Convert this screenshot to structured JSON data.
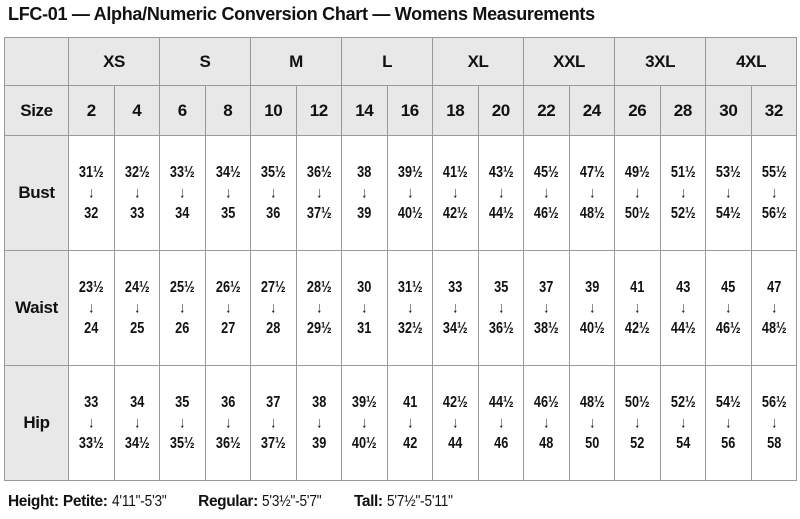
{
  "title": "LFC-01 — Alpha/Numeric Conversion Chart — Womens Measurements",
  "table": {
    "arrow": "↓",
    "alpha_sizes": [
      "XS",
      "S",
      "M",
      "L",
      "XL",
      "XXL",
      "3XL",
      "4XL"
    ],
    "size_row_label": "Size",
    "sizes": [
      "2",
      "4",
      "6",
      "8",
      "10",
      "12",
      "14",
      "16",
      "18",
      "20",
      "22",
      "24",
      "26",
      "28",
      "30",
      "32"
    ],
    "rows": [
      {
        "label": "Bust",
        "cells": [
          {
            "from": "31½",
            "to": "32"
          },
          {
            "from": "32½",
            "to": "33"
          },
          {
            "from": "33½",
            "to": "34"
          },
          {
            "from": "34½",
            "to": "35"
          },
          {
            "from": "35½",
            "to": "36"
          },
          {
            "from": "36½",
            "to": "37½"
          },
          {
            "from": "38",
            "to": "39"
          },
          {
            "from": "39½",
            "to": "40½"
          },
          {
            "from": "41½",
            "to": "42½"
          },
          {
            "from": "43½",
            "to": "44½"
          },
          {
            "from": "45½",
            "to": "46½"
          },
          {
            "from": "47½",
            "to": "48½"
          },
          {
            "from": "49½",
            "to": "50½"
          },
          {
            "from": "51½",
            "to": "52½"
          },
          {
            "from": "53½",
            "to": "54½"
          },
          {
            "from": "55½",
            "to": "56½"
          }
        ]
      },
      {
        "label": "Waist",
        "cells": [
          {
            "from": "23½",
            "to": "24"
          },
          {
            "from": "24½",
            "to": "25"
          },
          {
            "from": "25½",
            "to": "26"
          },
          {
            "from": "26½",
            "to": "27"
          },
          {
            "from": "27½",
            "to": "28"
          },
          {
            "from": "28½",
            "to": "29½"
          },
          {
            "from": "30",
            "to": "31"
          },
          {
            "from": "31½",
            "to": "32½"
          },
          {
            "from": "33",
            "to": "34½"
          },
          {
            "from": "35",
            "to": "36½"
          },
          {
            "from": "37",
            "to": "38½"
          },
          {
            "from": "39",
            "to": "40½"
          },
          {
            "from": "41",
            "to": "42½"
          },
          {
            "from": "43",
            "to": "44½"
          },
          {
            "from": "45",
            "to": "46½"
          },
          {
            "from": "47",
            "to": "48½"
          }
        ]
      },
      {
        "label": "Hip",
        "cells": [
          {
            "from": "33",
            "to": "33½"
          },
          {
            "from": "34",
            "to": "34½"
          },
          {
            "from": "35",
            "to": "35½"
          },
          {
            "from": "36",
            "to": "36½"
          },
          {
            "from": "37",
            "to": "37½"
          },
          {
            "from": "38",
            "to": "39"
          },
          {
            "from": "39½",
            "to": "40½"
          },
          {
            "from": "41",
            "to": "42"
          },
          {
            "from": "42½",
            "to": "44"
          },
          {
            "from": "44½",
            "to": "46"
          },
          {
            "from": "46½",
            "to": "48"
          },
          {
            "from": "48½",
            "to": "50"
          },
          {
            "from": "50½",
            "to": "52"
          },
          {
            "from": "52½",
            "to": "54"
          },
          {
            "from": "54½",
            "to": "56"
          },
          {
            "from": "56½",
            "to": "58"
          }
        ]
      }
    ]
  },
  "footer": {
    "height_label": "Height:",
    "segments": [
      {
        "label": "Petite:",
        "value": "4'11\"-5'3\""
      },
      {
        "label": "Regular:",
        "value": "5'3½\"-5'7\""
      },
      {
        "label": "Tall:",
        "value": "5'7½\"-5'11\""
      }
    ]
  },
  "colors": {
    "header_bg": "#e8e8e8",
    "border": "#999999",
    "text": "#111111"
  }
}
